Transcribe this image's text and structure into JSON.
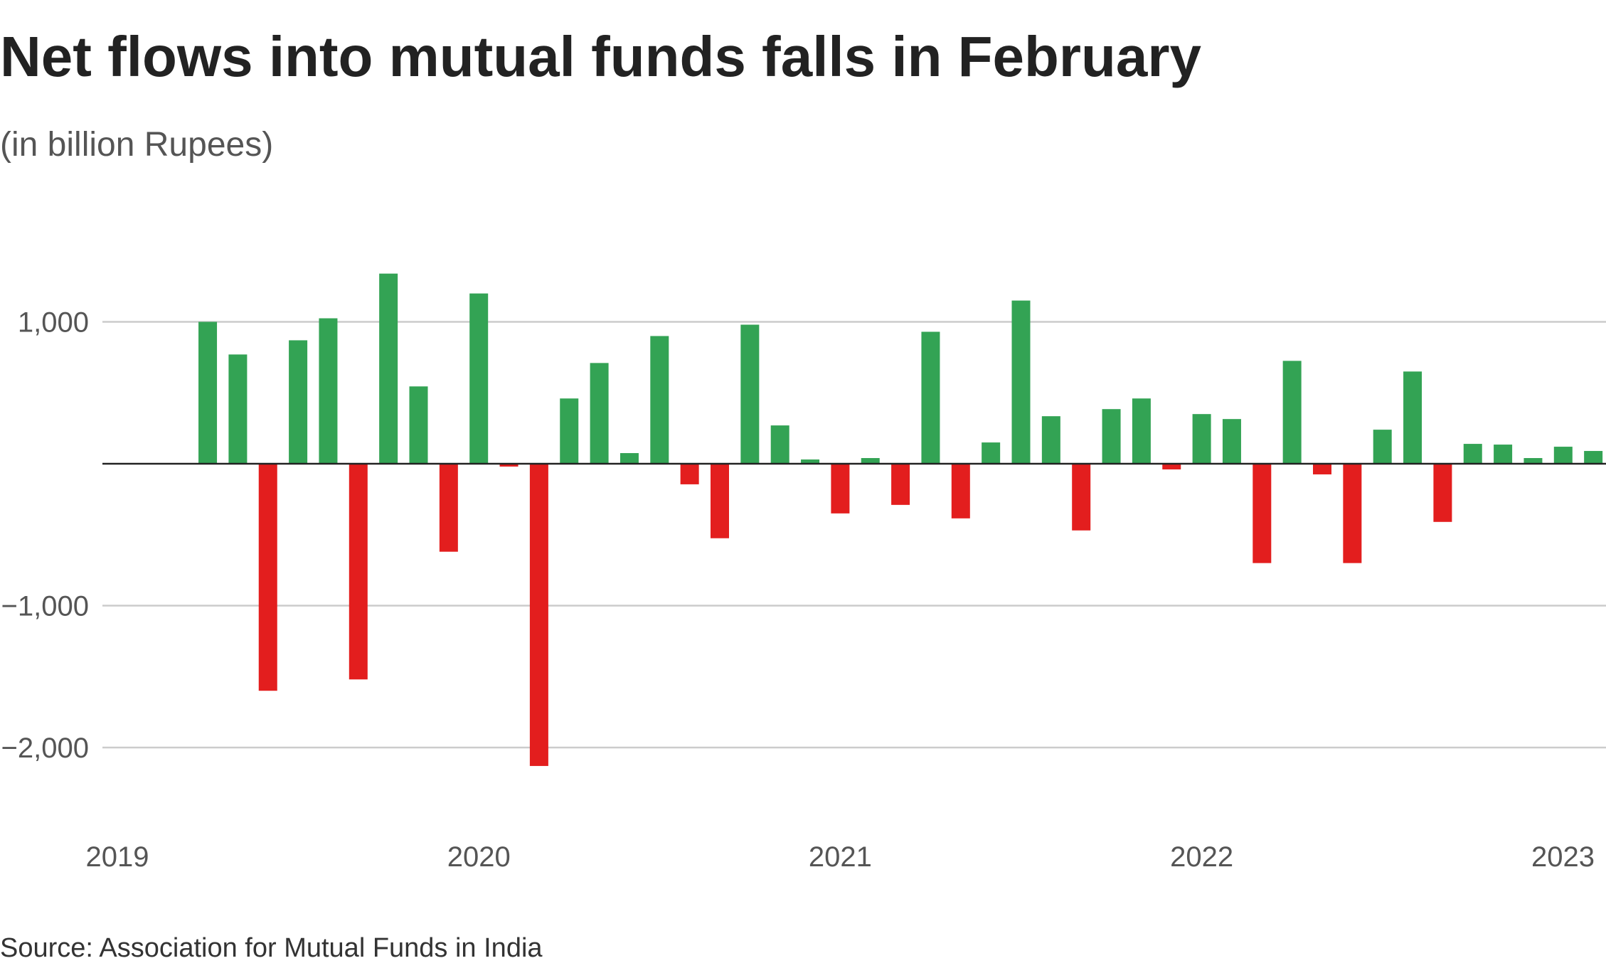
{
  "chart_data": {
    "type": "bar",
    "title": "Net flows into mutual funds falls in February",
    "subtitle": "(in billion Rupees)",
    "source": "Source: Association for Mutual Funds in India",
    "xlabel": "",
    "ylabel": "",
    "ylim": [
      -2500,
      1600
    ],
    "grid": true,
    "legend": "none",
    "y_ticks": [
      1000,
      -1000,
      -2000
    ],
    "y_tick_labels": [
      "1,000",
      "−1,000",
      "−2,000"
    ],
    "x_ticks": [
      "2019",
      "2020",
      "2021",
      "2022",
      "2023"
    ],
    "x_tick_positions": [
      0,
      12,
      24,
      36,
      48
    ],
    "colors": {
      "positive": "#33a354",
      "negative": "#e31e1e",
      "grid": "#cccccc",
      "zero_line": "#222222"
    },
    "x": [
      3,
      4,
      5,
      6,
      7,
      8,
      9,
      10,
      11,
      12,
      13,
      14,
      15,
      16,
      17,
      18,
      19,
      20,
      21,
      22,
      23,
      24,
      25,
      26,
      27,
      28,
      29,
      30,
      31,
      32,
      33,
      34,
      35,
      36,
      37,
      38,
      39,
      40,
      41,
      42,
      43,
      44,
      45,
      46,
      47,
      48,
      49
    ],
    "values": [
      1000,
      770,
      -1600,
      870,
      1025,
      -1520,
      1340,
      545,
      -620,
      1200,
      -20,
      -2130,
      460,
      710,
      75,
      900,
      -145,
      -525,
      980,
      270,
      30,
      -350,
      40,
      -290,
      930,
      -385,
      150,
      1150,
      335,
      -470,
      385,
      460,
      -40,
      350,
      315,
      -700,
      725,
      -75,
      -700,
      240,
      650,
      -410,
      140,
      135,
      40,
      120,
      90
    ]
  }
}
